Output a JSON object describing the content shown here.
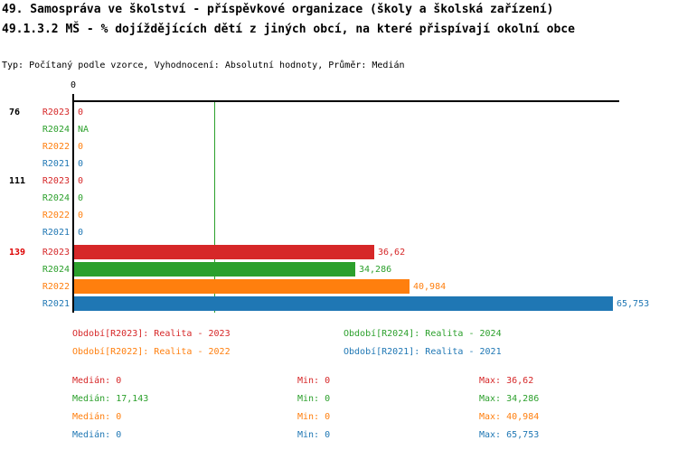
{
  "header": {
    "title_line1": "49. Samospráva ve školství - příspěvkové organizace (školy a školská zařízení)",
    "title_line2": "49.1.3.2 MŠ - % dojíždějících dětí z jiných obcí, na které přispívají okolní obce",
    "meta_line": "Typ: Počítaný podle vzorce, Vyhodnocení: Absolutní hodnoty, Průměr: Medián"
  },
  "colors": {
    "R2023": "#d62728",
    "R2024": "#2ca02c",
    "R2022": "#ff7f0e",
    "R2021": "#1f77b4",
    "highlight": "#dd0000",
    "axis": "#000000",
    "median_line": "#2ca02c"
  },
  "chart_data": {
    "type": "bar",
    "orientation": "horizontal",
    "title": "49.1.3.2 MŠ - % dojíždějících dětí z jiných obcí, na které přispívají okolní obce",
    "xlabel": "",
    "ylabel": "",
    "xlim": [
      0,
      66.8
    ],
    "grid": false,
    "axis": {
      "tick_label": "0",
      "median_line_value": 17.143
    },
    "series_order": [
      "R2023",
      "R2024",
      "R2022",
      "R2021"
    ],
    "groups": [
      {
        "label": "76",
        "highlighted": false,
        "rows": [
          {
            "series": "R2023",
            "value": 0,
            "display": "0"
          },
          {
            "series": "R2024",
            "value": null,
            "display": "NA"
          },
          {
            "series": "R2022",
            "value": 0,
            "display": "0"
          },
          {
            "series": "R2021",
            "value": 0,
            "display": "0"
          }
        ]
      },
      {
        "label": "111",
        "highlighted": false,
        "rows": [
          {
            "series": "R2023",
            "value": 0,
            "display": "0"
          },
          {
            "series": "R2024",
            "value": 0,
            "display": "0"
          },
          {
            "series": "R2022",
            "value": 0,
            "display": "0"
          },
          {
            "series": "R2021",
            "value": 0,
            "display": "0"
          }
        ]
      },
      {
        "label": "139",
        "highlighted": true,
        "rows": [
          {
            "series": "R2023",
            "value": 36.62,
            "display": "36,62"
          },
          {
            "series": "R2024",
            "value": 34.286,
            "display": "34,286"
          },
          {
            "series": "R2022",
            "value": 40.984,
            "display": "40,984"
          },
          {
            "series": "R2021",
            "value": 65.753,
            "display": "65,753"
          }
        ]
      }
    ]
  },
  "legend": {
    "items": [
      {
        "series": "R2023",
        "label": "Období[R2023]: Realita - 2023"
      },
      {
        "series": "R2024",
        "label": "Období[R2024]: Realita - 2024"
      },
      {
        "series": "R2022",
        "label": "Období[R2022]: Realita - 2022"
      },
      {
        "series": "R2021",
        "label": "Období[R2021]: Realita - 2021"
      }
    ]
  },
  "stats": {
    "median_label": "Medián:",
    "min_label": "Min:",
    "max_label": "Max:",
    "rows": [
      {
        "series": "R2023",
        "median": "0",
        "min": "0",
        "max": "36,62"
      },
      {
        "series": "R2024",
        "median": "17,143",
        "min": "0",
        "max": "34,286"
      },
      {
        "series": "R2022",
        "median": "0",
        "min": "0",
        "max": "40,984"
      },
      {
        "series": "R2021",
        "median": "0",
        "min": "0",
        "max": "65,753"
      }
    ]
  }
}
